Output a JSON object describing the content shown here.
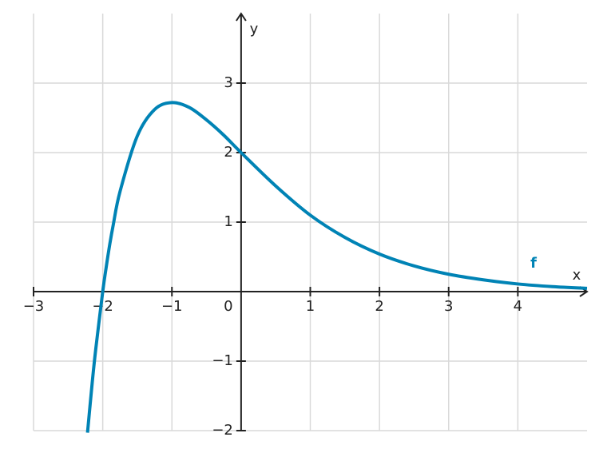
{
  "chart_data": {
    "type": "line",
    "x_label": "x",
    "y_label": "y",
    "xlim": [
      -3,
      5
    ],
    "ylim": [
      -2,
      4
    ],
    "xticks": [
      {
        "value": -3,
        "label": "−3"
      },
      {
        "value": -2,
        "label": "−2"
      },
      {
        "value": -1,
        "label": "−1"
      },
      0,
      1,
      2,
      3,
      4
    ],
    "yticks": [
      {
        "value": -2,
        "label": "−2"
      },
      {
        "value": -1,
        "label": "−1"
      },
      1,
      2,
      3
    ],
    "grid": true,
    "x": [
      -2.22,
      -2.15,
      -2.1,
      -2,
      -1.95,
      -1.9,
      -1.85,
      -1.75,
      -1.5,
      -1.25,
      -1,
      -0.75,
      -0.5,
      -0.25,
      0,
      0.5,
      1,
      1.5,
      2,
      2.5,
      3,
      3.5,
      4,
      4.5,
      5
    ],
    "series": [
      {
        "name": "f",
        "color": "#0083b5",
        "values": [
          -2.03,
          -1.29,
          -0.82,
          0,
          0.35,
          0.67,
          0.95,
          1.44,
          2.24,
          2.62,
          2.72,
          2.65,
          2.47,
          2.25,
          2,
          1.52,
          1.1,
          0.78,
          0.54,
          0.37,
          0.25,
          0.17,
          0.11,
          0.072,
          0.047
        ]
      }
    ]
  }
}
